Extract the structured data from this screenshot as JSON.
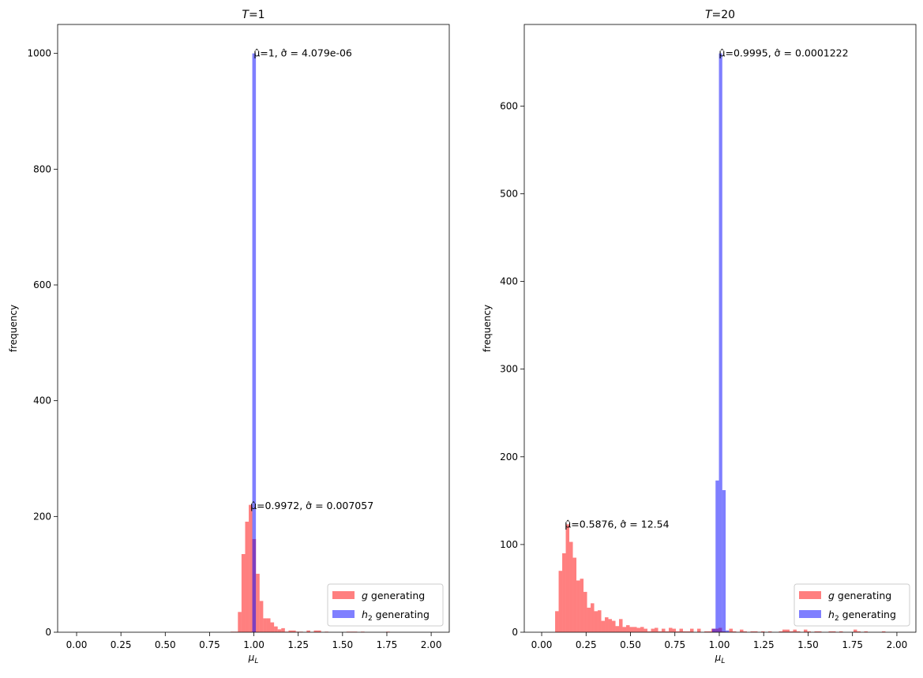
{
  "chart_data": [
    {
      "type": "bar",
      "title_var": "T",
      "title_val": "=1",
      "xlabel": "μ",
      "xlabel_sub": "L",
      "ylabel": "frequency",
      "xlim": [
        -0.107,
        2.102
      ],
      "ylim": [
        0,
        1050
      ],
      "xticks": [
        0,
        0.25,
        0.5,
        0.75,
        1.0,
        1.25,
        1.5,
        1.75,
        2.0
      ],
      "xtick_labels": [
        "0.00",
        "0.25",
        "0.50",
        "0.75",
        "1.00",
        "1.25",
        "1.50",
        "1.75",
        "2.00"
      ],
      "yticks": [
        0,
        200,
        400,
        600,
        800,
        1000
      ],
      "ytick_labels": [
        "0",
        "200",
        "400",
        "600",
        "800",
        "1000"
      ],
      "legend_position": "lower-right",
      "series": [
        {
          "name": "g generating",
          "legend_var": "g",
          "legend_sub": "",
          "legend_rest": " generating",
          "color": "#ff0000",
          "alpha": 0.5,
          "bin_start": 0.869,
          "bin_width": 0.0204,
          "values": [
            1,
            1,
            35,
            135,
            191,
            220,
            161,
            101,
            54,
            24,
            24,
            17,
            10,
            5,
            7,
            1,
            3,
            3,
            1,
            1,
            0,
            3,
            0,
            3,
            3,
            0,
            1,
            0,
            0,
            0,
            0,
            0,
            1,
            1,
            1,
            0,
            1,
            0,
            0,
            0,
            0,
            0,
            0,
            1
          ]
        },
        {
          "name": "h2 generating",
          "legend_var": "h",
          "legend_sub": "2",
          "legend_rest": " generating",
          "color": "#0000ff",
          "alpha": 0.5,
          "bin_start": 0.991,
          "bin_width": 0.0204,
          "values": [
            1000
          ]
        }
      ],
      "annotations": [
        {
          "text": "μ̂=1, σ̂ = 4.079e-06",
          "x": 0.999,
          "y": 1000
        },
        {
          "text": "μ̂=0.9972, σ̂ = 0.007057",
          "x": 0.98,
          "y": 218
        }
      ]
    },
    {
      "type": "bar",
      "title_var": "T",
      "title_val": "=20",
      "xlabel": "μ",
      "xlabel_sub": "L",
      "ylabel": "frequency",
      "xlim": [
        -0.098,
        2.107
      ],
      "ylim": [
        0,
        693
      ],
      "xticks": [
        0,
        0.25,
        0.5,
        0.75,
        1.0,
        1.25,
        1.5,
        1.75,
        2.0
      ],
      "xtick_labels": [
        "0.00",
        "0.25",
        "0.50",
        "0.75",
        "1.00",
        "1.25",
        "1.50",
        "1.75",
        "2.00"
      ],
      "yticks": [
        0,
        100,
        200,
        300,
        400,
        500,
        600
      ],
      "ytick_labels": [
        "0",
        "100",
        "200",
        "300",
        "400",
        "500",
        "600"
      ],
      "legend_position": "lower-right",
      "series": [
        {
          "name": "g generating",
          "legend_var": "g",
          "legend_sub": "",
          "legend_rest": " generating",
          "color": "#ff0000",
          "alpha": 0.5,
          "bin_start": 0.0756,
          "bin_width": 0.02,
          "values": [
            24,
            70,
            90,
            123,
            103,
            85,
            59,
            61,
            46,
            28,
            33,
            24,
            25,
            13,
            17,
            15,
            13,
            7,
            15,
            6,
            8,
            6,
            6,
            5,
            6,
            4,
            1,
            4,
            5,
            1,
            4,
            1,
            5,
            4,
            1,
            4,
            1,
            1,
            4,
            0,
            4,
            0,
            1,
            1,
            4,
            4,
            5,
            1,
            0,
            4,
            1,
            0,
            3,
            1,
            0,
            1,
            1,
            0,
            1,
            0,
            1,
            0,
            0,
            1,
            3,
            3,
            1,
            3,
            1,
            0,
            3,
            1,
            0,
            1,
            1,
            0,
            0,
            1,
            1,
            0,
            1,
            0,
            0,
            0,
            3,
            1,
            0,
            1,
            0,
            0,
            0,
            0,
            1
          ]
        },
        {
          "name": "h2 generating",
          "legend_var": "h",
          "legend_sub": "2",
          "legend_rest": " generating",
          "color": "#0000ff",
          "alpha": 0.5,
          "bin_start": 0.96,
          "bin_width": 0.019,
          "values": [
            4,
            173,
            660,
            162,
            2
          ]
        }
      ],
      "annotations": [
        {
          "text": "μ̂=0.9995, σ̂ = 0.0001222",
          "x": 0.998,
          "y": 660
        },
        {
          "text": "μ̂=0.5876, σ̂ = 12.54",
          "x": 0.13,
          "y": 123
        }
      ]
    }
  ]
}
